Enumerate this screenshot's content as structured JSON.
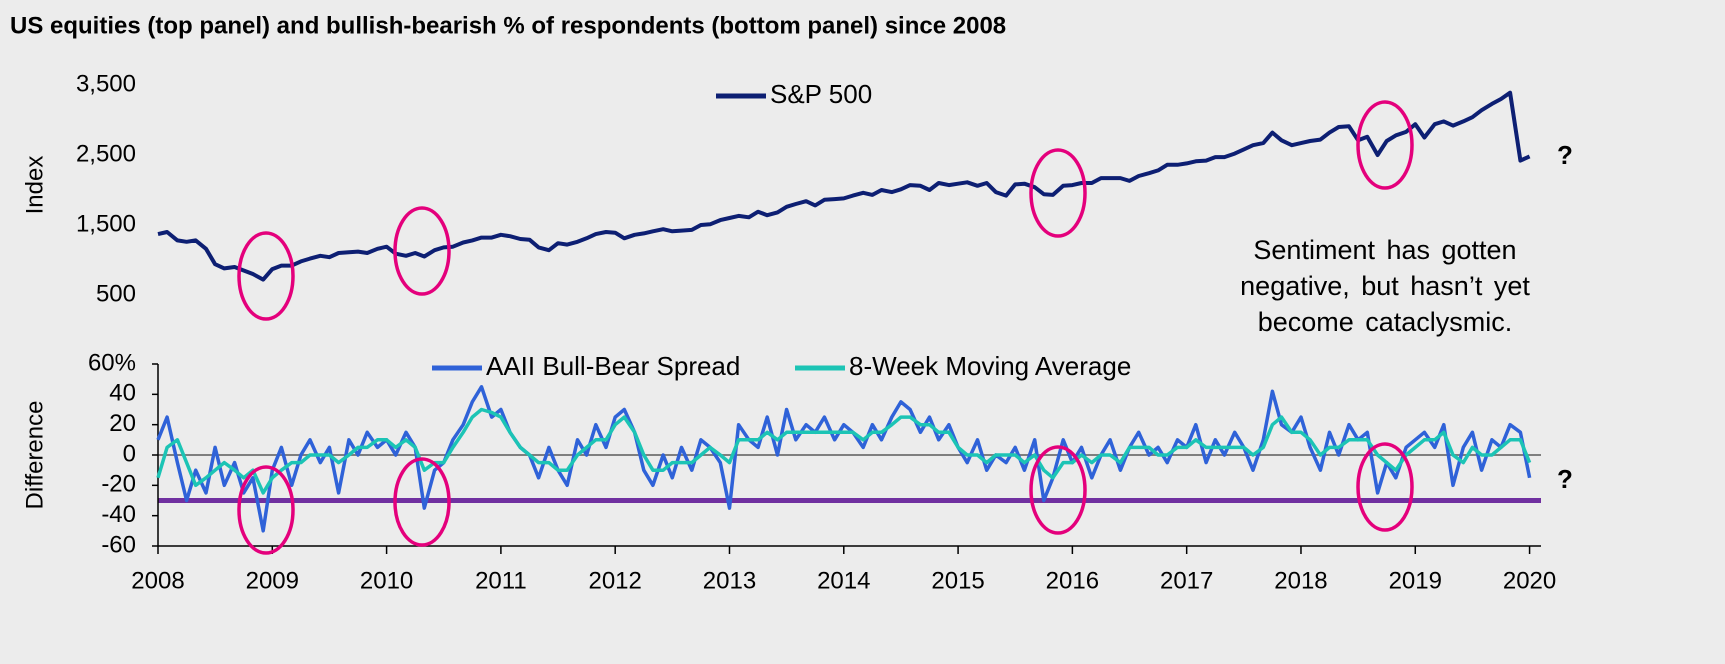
{
  "chart_data": [
    {
      "type": "line",
      "title": "US equities (top panel) and bullish-bearish % of respondents (bottom panel) since 2008",
      "y_label": "Index",
      "legend": "top",
      "xlim": [
        2008,
        2020.1
      ],
      "ylim": [
        500,
        3500
      ],
      "yticks": [
        {
          "value": 3500,
          "label": "3,500"
        },
        {
          "value": 2500,
          "label": "2,500"
        },
        {
          "value": 1500,
          "label": "1,500"
        },
        500
      ],
      "annotations": [
        "Sentiment has gotten",
        "negative, but hasn’t yet",
        "become cataclysmic.",
        "?"
      ],
      "x": [
        2008,
        2008.08,
        2008.17,
        2008.25,
        2008.33,
        2008.42,
        2008.5,
        2008.58,
        2008.67,
        2008.75,
        2008.83,
        2008.92,
        2009,
        2009.08,
        2009.17,
        2009.25,
        2009.33,
        2009.42,
        2009.5,
        2009.58,
        2009.67,
        2009.75,
        2009.83,
        2009.92,
        2010,
        2010.08,
        2010.17,
        2010.25,
        2010.33,
        2010.42,
        2010.5,
        2010.58,
        2010.67,
        2010.75,
        2010.83,
        2010.92,
        2011,
        2011.08,
        2011.17,
        2011.25,
        2011.33,
        2011.42,
        2011.5,
        2011.58,
        2011.67,
        2011.75,
        2011.83,
        2011.92,
        2012,
        2012.08,
        2012.17,
        2012.25,
        2012.33,
        2012.42,
        2012.5,
        2012.58,
        2012.67,
        2012.75,
        2012.83,
        2012.92,
        2013,
        2013.08,
        2013.17,
        2013.25,
        2013.33,
        2013.42,
        2013.5,
        2013.58,
        2013.67,
        2013.75,
        2013.83,
        2013.92,
        2014,
        2014.08,
        2014.17,
        2014.25,
        2014.33,
        2014.42,
        2014.5,
        2014.58,
        2014.67,
        2014.75,
        2014.83,
        2014.92,
        2015,
        2015.08,
        2015.17,
        2015.25,
        2015.33,
        2015.42,
        2015.5,
        2015.58,
        2015.67,
        2015.75,
        2015.83,
        2015.92,
        2016,
        2016.08,
        2016.17,
        2016.25,
        2016.33,
        2016.42,
        2016.5,
        2016.58,
        2016.67,
        2016.75,
        2016.83,
        2016.92,
        2017,
        2017.08,
        2017.17,
        2017.25,
        2017.33,
        2017.42,
        2017.5,
        2017.58,
        2017.67,
        2017.75,
        2017.83,
        2017.92,
        2018,
        2018.08,
        2018.17,
        2018.25,
        2018.33,
        2018.42,
        2018.5,
        2018.58,
        2018.67,
        2018.75,
        2018.83,
        2018.92,
        2019,
        2019.08,
        2019.17,
        2019.25,
        2019.33,
        2019.42,
        2019.5,
        2019.58,
        2019.67,
        2019.75,
        2019.83,
        2019.92,
        2020
      ],
      "series": [
        {
          "name": "S&P 500",
          "color": "#0d1f73",
          "values": [
            1370,
            1400,
            1280,
            1260,
            1280,
            1160,
            940,
            880,
            900,
            850,
            800,
            720,
            870,
            920,
            920,
            980,
            1020,
            1060,
            1040,
            1100,
            1110,
            1120,
            1100,
            1160,
            1190,
            1090,
            1060,
            1100,
            1050,
            1140,
            1180,
            1190,
            1250,
            1280,
            1320,
            1320,
            1360,
            1340,
            1300,
            1290,
            1180,
            1140,
            1240,
            1220,
            1260,
            1310,
            1370,
            1400,
            1390,
            1310,
            1360,
            1380,
            1410,
            1440,
            1410,
            1420,
            1430,
            1500,
            1510,
            1570,
            1600,
            1630,
            1610,
            1690,
            1640,
            1680,
            1760,
            1800,
            1840,
            1780,
            1860,
            1870,
            1880,
            1920,
            1960,
            1930,
            2000,
            1970,
            2010,
            2070,
            2060,
            2000,
            2100,
            2070,
            2090,
            2110,
            2060,
            2100,
            1970,
            1920,
            2080,
            2090,
            2040,
            1940,
            1930,
            2060,
            2070,
            2100,
            2100,
            2170,
            2170,
            2170,
            2130,
            2200,
            2240,
            2280,
            2360,
            2360,
            2380,
            2410,
            2420,
            2470,
            2470,
            2520,
            2580,
            2640,
            2670,
            2820,
            2710,
            2640,
            2670,
            2700,
            2720,
            2820,
            2900,
            2910,
            2710,
            2760,
            2500,
            2700,
            2780,
            2830,
            2940,
            2750,
            2940,
            2980,
            2920,
            2980,
            3040,
            3140,
            3230,
            3300,
            3390,
            2420,
            2480
          ]
        }
      ]
    },
    {
      "type": "line",
      "y_label": "Difference",
      "legend": "top",
      "xlim": [
        2008,
        2020.1
      ],
      "ylim": [
        -60,
        60
      ],
      "yticks": [
        {
          "value": 60,
          "label": "60%"
        },
        40,
        20,
        0,
        -20,
        -40,
        -60
      ],
      "xticks": [
        2008,
        2009,
        2010,
        2011,
        2012,
        2013,
        2014,
        2015,
        2016,
        2017,
        2018,
        2019,
        2020
      ],
      "reference_lines": [
        {
          "value": -30,
          "color": "#7030a0"
        }
      ],
      "annotations": [
        "?"
      ],
      "x": [
        2008,
        2008.08,
        2008.17,
        2008.25,
        2008.33,
        2008.42,
        2008.5,
        2008.58,
        2008.67,
        2008.75,
        2008.83,
        2008.92,
        2009,
        2009.08,
        2009.17,
        2009.25,
        2009.33,
        2009.42,
        2009.5,
        2009.58,
        2009.67,
        2009.75,
        2009.83,
        2009.92,
        2010,
        2010.08,
        2010.17,
        2010.25,
        2010.33,
        2010.42,
        2010.5,
        2010.58,
        2010.67,
        2010.75,
        2010.83,
        2010.92,
        2011,
        2011.08,
        2011.17,
        2011.25,
        2011.33,
        2011.42,
        2011.5,
        2011.58,
        2011.67,
        2011.75,
        2011.83,
        2011.92,
        2012,
        2012.08,
        2012.17,
        2012.25,
        2012.33,
        2012.42,
        2012.5,
        2012.58,
        2012.67,
        2012.75,
        2012.83,
        2012.92,
        2013,
        2013.08,
        2013.17,
        2013.25,
        2013.33,
        2013.42,
        2013.5,
        2013.58,
        2013.67,
        2013.75,
        2013.83,
        2013.92,
        2014,
        2014.08,
        2014.17,
        2014.25,
        2014.33,
        2014.42,
        2014.5,
        2014.58,
        2014.67,
        2014.75,
        2014.83,
        2014.92,
        2015,
        2015.08,
        2015.17,
        2015.25,
        2015.33,
        2015.42,
        2015.5,
        2015.58,
        2015.67,
        2015.75,
        2015.83,
        2015.92,
        2016,
        2016.08,
        2016.17,
        2016.25,
        2016.33,
        2016.42,
        2016.5,
        2016.58,
        2016.67,
        2016.75,
        2016.83,
        2016.92,
        2017,
        2017.08,
        2017.17,
        2017.25,
        2017.33,
        2017.42,
        2017.5,
        2017.58,
        2017.67,
        2017.75,
        2017.83,
        2017.92,
        2018,
        2018.08,
        2018.17,
        2018.25,
        2018.33,
        2018.42,
        2018.5,
        2018.58,
        2018.67,
        2018.75,
        2018.83,
        2018.92,
        2019,
        2019.08,
        2019.17,
        2019.25,
        2019.33,
        2019.42,
        2019.5,
        2019.58,
        2019.67,
        2019.75,
        2019.83,
        2019.92,
        2020
      ],
      "series": [
        {
          "name": "AAII Bull-Bear Spread",
          "color": "#2f62d8",
          "values": [
            10,
            25,
            -5,
            -30,
            -10,
            -25,
            5,
            -20,
            -5,
            -25,
            -15,
            -50,
            -10,
            5,
            -20,
            0,
            10,
            -5,
            5,
            -25,
            10,
            0,
            15,
            5,
            10,
            0,
            15,
            5,
            -35,
            -10,
            -5,
            10,
            20,
            35,
            45,
            25,
            30,
            15,
            5,
            0,
            -15,
            5,
            -10,
            -20,
            10,
            0,
            20,
            5,
            25,
            30,
            15,
            -10,
            -20,
            0,
            -15,
            5,
            -10,
            10,
            5,
            -5,
            -35,
            20,
            10,
            5,
            25,
            0,
            30,
            10,
            20,
            15,
            25,
            10,
            20,
            15,
            5,
            20,
            10,
            25,
            35,
            30,
            15,
            25,
            10,
            20,
            5,
            -5,
            10,
            -10,
            0,
            -5,
            5,
            -10,
            10,
            -30,
            -15,
            10,
            -5,
            5,
            -15,
            0,
            10,
            -10,
            5,
            15,
            0,
            5,
            -5,
            10,
            5,
            20,
            -5,
            10,
            0,
            15,
            5,
            -10,
            10,
            42,
            20,
            15,
            25,
            5,
            -10,
            15,
            0,
            20,
            10,
            15,
            -25,
            -5,
            -15,
            5,
            10,
            15,
            5,
            20,
            -20,
            5,
            15,
            -10,
            10,
            5,
            20,
            15,
            -15
          ]
        },
        {
          "name": "8-Week Moving Average",
          "color": "#1cc4b5",
          "values": [
            -15,
            5,
            10,
            -5,
            -20,
            -15,
            -10,
            -5,
            -10,
            -15,
            -10,
            -25,
            -15,
            -10,
            -5,
            -5,
            0,
            0,
            0,
            -5,
            0,
            5,
            5,
            10,
            10,
            5,
            10,
            5,
            -10,
            -5,
            -5,
            5,
            15,
            25,
            30,
            28,
            25,
            15,
            5,
            0,
            -5,
            -5,
            -10,
            -10,
            0,
            5,
            10,
            10,
            20,
            25,
            15,
            0,
            -10,
            -10,
            -5,
            -5,
            -5,
            0,
            5,
            0,
            -5,
            10,
            10,
            10,
            15,
            10,
            15,
            15,
            15,
            15,
            15,
            15,
            15,
            15,
            10,
            15,
            15,
            20,
            25,
            25,
            20,
            20,
            15,
            15,
            5,
            0,
            0,
            -5,
            0,
            0,
            0,
            -5,
            0,
            -10,
            -15,
            -5,
            -5,
            0,
            -5,
            0,
            0,
            -5,
            5,
            5,
            5,
            0,
            0,
            5,
            5,
            10,
            5,
            5,
            5,
            5,
            5,
            0,
            5,
            20,
            25,
            15,
            15,
            10,
            0,
            5,
            5,
            10,
            10,
            10,
            0,
            -5,
            -10,
            0,
            5,
            10,
            10,
            15,
            0,
            -5,
            5,
            0,
            0,
            5,
            10,
            10,
            -5
          ]
        }
      ]
    }
  ]
}
